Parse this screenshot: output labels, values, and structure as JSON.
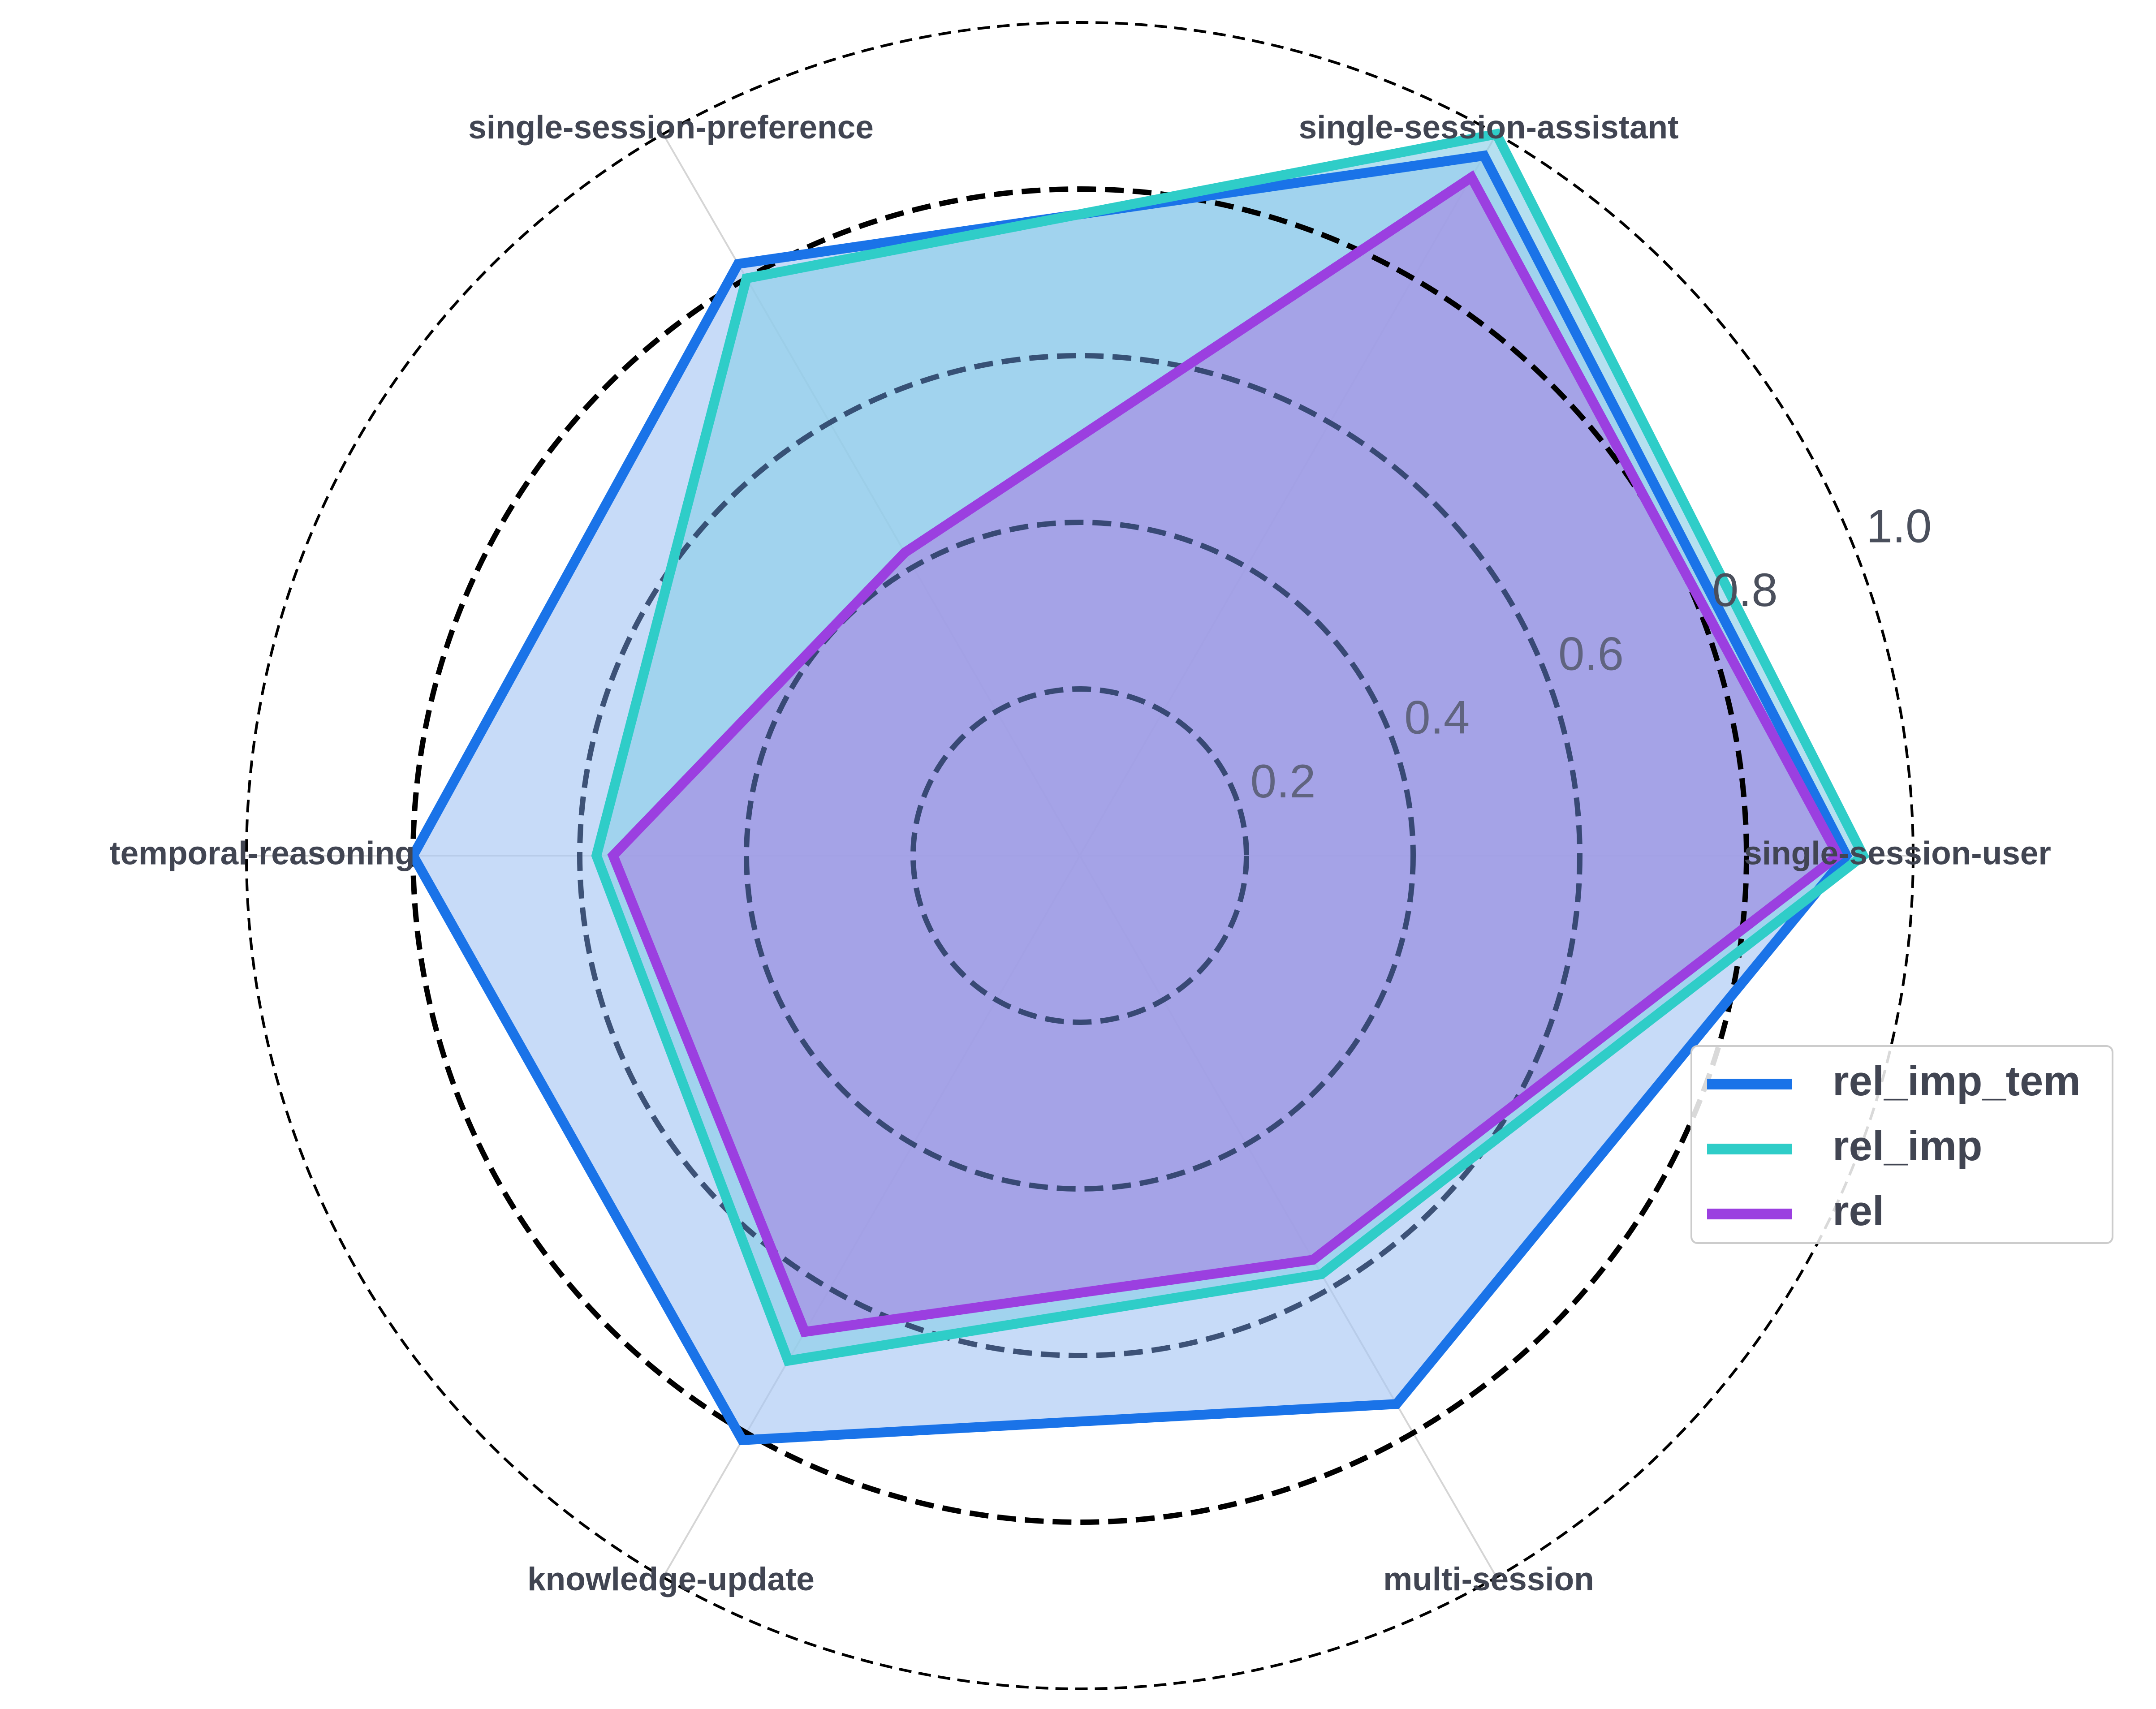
{
  "chart_data": {
    "type": "radar",
    "axes": [
      "single-session-user",
      "single-session-assistant",
      "single-session-preference",
      "temporal-reasoning",
      "knowledge-update",
      "multi-session"
    ],
    "rlim": [
      0,
      1.0
    ],
    "r_ticks": [
      0.2,
      0.4,
      0.6,
      0.8,
      1.0
    ],
    "r_tick_labels": [
      "0.2",
      "0.4",
      "0.6",
      "0.8",
      "1.0"
    ],
    "grid": true,
    "legend_position": "lower-right",
    "series": [
      {
        "name": "rel_imp_tem",
        "color": "#1a73e8",
        "fill": "#a9c8f5",
        "values": [
          0.92,
          0.97,
          0.82,
          0.8,
          0.81,
          0.76
        ]
      },
      {
        "name": "rel_imp",
        "color": "#2fcdc8",
        "fill": "#8ecfe8",
        "values": [
          0.94,
          1.0,
          0.8,
          0.58,
          0.7,
          0.58
        ]
      },
      {
        "name": "rel",
        "color": "#9b3fe0",
        "fill": "#a889e4",
        "values": [
          0.91,
          0.94,
          0.42,
          0.56,
          0.66,
          0.56
        ]
      }
    ]
  }
}
